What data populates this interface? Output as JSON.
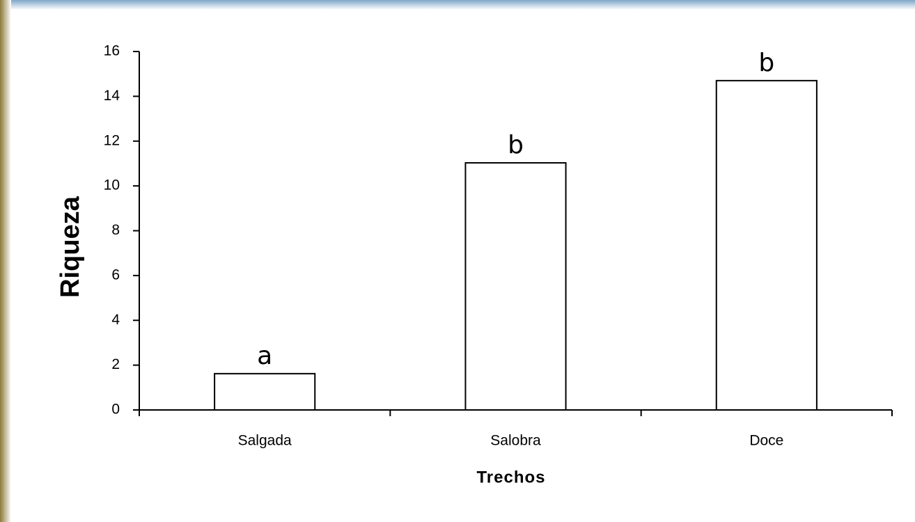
{
  "chart_data": {
    "type": "bar",
    "x_label": "Trechos",
    "y_label": "Riqueza",
    "categories": [
      "Salgada",
      "Salobra",
      "Doce"
    ],
    "values": [
      1.62,
      11.03,
      14.7
    ],
    "annotations": [
      "a",
      "b",
      "b"
    ],
    "color": "#ffffff",
    "edge_color": "#000000",
    "ylim": [
      0,
      16
    ],
    "yticks": [
      0,
      2,
      4,
      6,
      8,
      10,
      12,
      14,
      16
    ],
    "grid": false
  }
}
